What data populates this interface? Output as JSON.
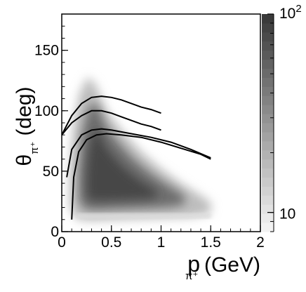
{
  "chart_data": {
    "type": "heatmap",
    "x_axis": {
      "label_main": "p",
      "label_sub": "π⁺",
      "label_unit": "(GeV)",
      "range": [
        0,
        2
      ],
      "ticks": [
        {
          "value": 0,
          "label": "0"
        },
        {
          "value": 0.5,
          "label": "0.5"
        },
        {
          "value": 1,
          "label": "1"
        },
        {
          "value": 1.5,
          "label": "1.5"
        },
        {
          "value": 2,
          "label": "2"
        }
      ]
    },
    "y_axis": {
      "label_main": "θ",
      "label_sub": "π⁺",
      "label_unit": "(deg)",
      "range": [
        0,
        180
      ],
      "ticks": [
        {
          "value": 0,
          "label": "0"
        },
        {
          "value": 50,
          "label": "50"
        },
        {
          "value": 100,
          "label": "100"
        },
        {
          "value": 150,
          "label": "150"
        }
      ]
    },
    "colorbar": {
      "scale": "log",
      "range": [
        8,
        100
      ],
      "labels": [
        {
          "value": 100,
          "base": "10",
          "exp": "2"
        },
        {
          "value": 10,
          "base": "10",
          "exp": ""
        }
      ],
      "color_low": "#f2f2f2",
      "color_high": "#3a3a3a"
    },
    "density_region": {
      "description_points": [
        [
          0.08,
          50
        ],
        [
          0.12,
          90
        ],
        [
          0.18,
          115
        ],
        [
          0.26,
          128
        ],
        [
          0.34,
          122
        ],
        [
          0.45,
          100
        ],
        [
          0.6,
          84
        ],
        [
          0.8,
          66
        ],
        [
          1.0,
          52
        ],
        [
          1.2,
          40
        ],
        [
          1.4,
          30
        ],
        [
          1.5,
          24
        ],
        [
          1.5,
          15
        ],
        [
          1.3,
          12
        ],
        [
          1.0,
          11
        ],
        [
          0.6,
          10
        ],
        [
          0.3,
          9
        ],
        [
          0.15,
          10
        ],
        [
          0.08,
          20
        ]
      ],
      "band_ridge_theta": 13
    },
    "curves": [
      {
        "points": [
          [
            0.0,
            80
          ],
          [
            0.1,
            96
          ],
          [
            0.2,
            106
          ],
          [
            0.3,
            111
          ],
          [
            0.4,
            112
          ],
          [
            0.5,
            111
          ],
          [
            0.6,
            109
          ],
          [
            0.7,
            106
          ],
          [
            0.8,
            103
          ],
          [
            0.9,
            101
          ],
          [
            1.0,
            98
          ]
        ]
      },
      {
        "points": [
          [
            0.0,
            80
          ],
          [
            0.1,
            90
          ],
          [
            0.2,
            96
          ],
          [
            0.3,
            100
          ],
          [
            0.4,
            100
          ],
          [
            0.5,
            98
          ],
          [
            0.6,
            95
          ],
          [
            0.7,
            92
          ],
          [
            0.8,
            89
          ],
          [
            0.9,
            87
          ],
          [
            1.0,
            84
          ]
        ]
      },
      {
        "points": [
          [
            0.05,
            45
          ],
          [
            0.1,
            68
          ],
          [
            0.2,
            80
          ],
          [
            0.3,
            84
          ],
          [
            0.4,
            85
          ],
          [
            0.5,
            84
          ],
          [
            0.7,
            81
          ],
          [
            0.9,
            78
          ],
          [
            1.1,
            74
          ],
          [
            1.3,
            68
          ],
          [
            1.5,
            61
          ]
        ]
      },
      {
        "points": [
          [
            0.1,
            10
          ],
          [
            0.12,
            45
          ],
          [
            0.17,
            66
          ],
          [
            0.25,
            76
          ],
          [
            0.35,
            80
          ],
          [
            0.45,
            81
          ],
          [
            0.6,
            80
          ],
          [
            0.8,
            78
          ],
          [
            1.0,
            74
          ],
          [
            1.2,
            69
          ],
          [
            1.4,
            64
          ],
          [
            1.5,
            60
          ]
        ]
      }
    ]
  }
}
